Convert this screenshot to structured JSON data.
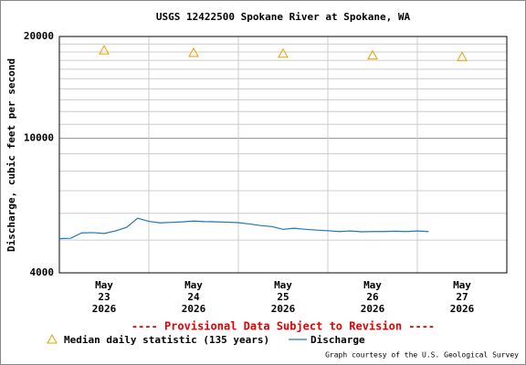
{
  "chart_data": {
    "type": "line",
    "title": "USGS 12422500 Spokane River at Spokane, WA",
    "y_label": "Discharge, cubic feet per second",
    "notice": "---- Provisional Data Subject to Revision ----",
    "credit": "Graph courtesy of the U.S. Geological Survey",
    "log_scale": true,
    "ylim": [
      4000,
      20000
    ],
    "yticks": [
      4000,
      10000,
      20000
    ],
    "yminorticks": [
      5000,
      6000,
      7000,
      8000,
      9000,
      11000,
      12000,
      13000,
      14000,
      15000,
      16000,
      17000,
      18000,
      19000
    ],
    "x_labels": [
      {
        "month": "May",
        "day": "23",
        "year": "2026"
      },
      {
        "month": "May",
        "day": "24",
        "year": "2026"
      },
      {
        "month": "May",
        "day": "25",
        "year": "2026"
      },
      {
        "month": "May",
        "day": "26",
        "year": "2026"
      },
      {
        "month": "May",
        "day": "27",
        "year": "2026"
      }
    ],
    "series": [
      {
        "name": "Median daily statistic (135 years)",
        "color": "#e8a000",
        "marker": "triangle",
        "values": [
          18200,
          17900,
          17800,
          17600,
          17400
        ]
      },
      {
        "name": "Discharge",
        "color": "#1f77b4",
        "values": [
          5050,
          5060,
          5250,
          5260,
          5230,
          5320,
          5450,
          5800,
          5680,
          5620,
          5640,
          5660,
          5690,
          5670,
          5660,
          5650,
          5630,
          5580,
          5520,
          5480,
          5380,
          5420,
          5380,
          5350,
          5330,
          5300,
          5320,
          5290,
          5300,
          5300,
          5310,
          5300,
          5320,
          5300
        ]
      }
    ]
  }
}
